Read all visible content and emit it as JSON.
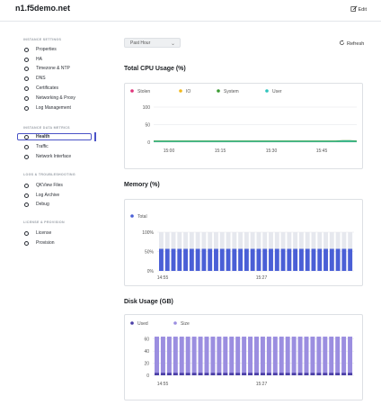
{
  "header": {
    "title": "n1.f5demo.net",
    "edit_label": "Edit"
  },
  "sidebar": {
    "sections": [
      {
        "title": "INSTANCE SETTINGS",
        "items": [
          "Properties",
          "HA",
          "Timezone & NTP",
          "DNS",
          "Certificates",
          "Networking & Proxy",
          "Log Management"
        ]
      },
      {
        "title": "INSTANCE DATA METRICS",
        "items": [
          "Health",
          "Traffic",
          "Network Interface"
        ]
      },
      {
        "title": "LOGS & TROUBLESHOOTING",
        "items": [
          "QKView Files",
          "Log Archive",
          "Debug"
        ]
      },
      {
        "title": "LICENSE & PROVISION",
        "items": [
          "License",
          "Provision"
        ]
      }
    ],
    "active_item": "Health"
  },
  "toolbar": {
    "range_value": "Past Hour",
    "refresh_label": "Refresh"
  },
  "sections": {
    "cpu_title": "Total CPU Usage (%)",
    "memory_title": "Memory (%)",
    "disk_title": "Disk Usage (GB)"
  },
  "chart_data": [
    {
      "type": "area",
      "title": "Total CPU Usage (%)",
      "legend": [
        {
          "name": "Stolen",
          "color": "#e0337a"
        },
        {
          "name": "IO",
          "color": "#f2b91c"
        },
        {
          "name": "System",
          "color": "#3a9a32"
        },
        {
          "name": "User",
          "color": "#2fc4bd"
        }
      ],
      "y_ticks": [
        "0",
        "50",
        "100"
      ],
      "ylim": [
        0,
        100
      ],
      "x_ticks": [
        "15:00",
        "15:15",
        "15:30",
        "15:45"
      ],
      "series": [
        {
          "name": "User",
          "values": [
            3,
            3,
            3,
            3,
            3,
            3,
            3,
            3,
            3,
            3,
            3,
            3,
            3,
            3,
            3,
            3,
            3,
            3,
            3,
            3,
            3,
            3,
            3,
            3,
            3,
            3,
            3,
            4,
            4,
            3
          ]
        },
        {
          "name": "System",
          "values": [
            1,
            1,
            1,
            1,
            1,
            1,
            1,
            1,
            1,
            1,
            1,
            1,
            1,
            1,
            1,
            1,
            1,
            1,
            1,
            1,
            1,
            1,
            1,
            1,
            1,
            1,
            1,
            1,
            1,
            1
          ]
        }
      ],
      "grid": true,
      "legend_position": "top-left"
    },
    {
      "type": "bar",
      "title": "Memory (%)",
      "legend": [
        {
          "name": "Total",
          "color": "#4a5fd6"
        }
      ],
      "y_ticks": [
        "0%",
        "50%",
        "100%"
      ],
      "ylim": [
        0,
        100
      ],
      "x_ticks": [
        "14:55",
        "15:27"
      ],
      "bar_count": 32,
      "series": [
        {
          "name": "Total",
          "values": [
            57,
            57,
            57,
            57,
            57,
            57,
            57,
            57,
            57,
            57,
            57,
            57,
            57,
            57,
            57,
            57,
            57,
            57,
            57,
            57,
            57,
            57,
            57,
            57,
            57,
            57,
            57,
            57,
            57,
            57,
            57,
            57
          ]
        }
      ],
      "background_max": 100,
      "grid": true,
      "legend_position": "top-left"
    },
    {
      "type": "bar",
      "title": "Disk Usage (GB)",
      "legend": [
        {
          "name": "Used",
          "color": "#4a3ea6"
        },
        {
          "name": "Size",
          "color": "#9b8ee0"
        }
      ],
      "y_ticks": [
        "0",
        "20",
        "40",
        "60"
      ],
      "ylim": [
        0,
        70
      ],
      "x_ticks": [
        "14:55",
        "15:27"
      ],
      "bar_count": 32,
      "series": [
        {
          "name": "Used",
          "values": [
            4,
            4,
            4,
            4,
            4,
            4,
            4,
            4,
            4,
            4,
            4,
            4,
            4,
            4,
            4,
            4,
            4,
            4,
            4,
            4,
            4,
            4,
            4,
            4,
            4,
            4,
            4,
            4,
            4,
            4,
            4,
            4
          ]
        },
        {
          "name": "Size",
          "values": [
            64,
            64,
            64,
            64,
            64,
            64,
            64,
            64,
            64,
            64,
            64,
            64,
            64,
            64,
            64,
            64,
            64,
            64,
            64,
            64,
            64,
            64,
            64,
            64,
            64,
            64,
            64,
            64,
            64,
            64,
            64,
            64
          ]
        }
      ],
      "grid": true,
      "legend_position": "top-left"
    }
  ]
}
